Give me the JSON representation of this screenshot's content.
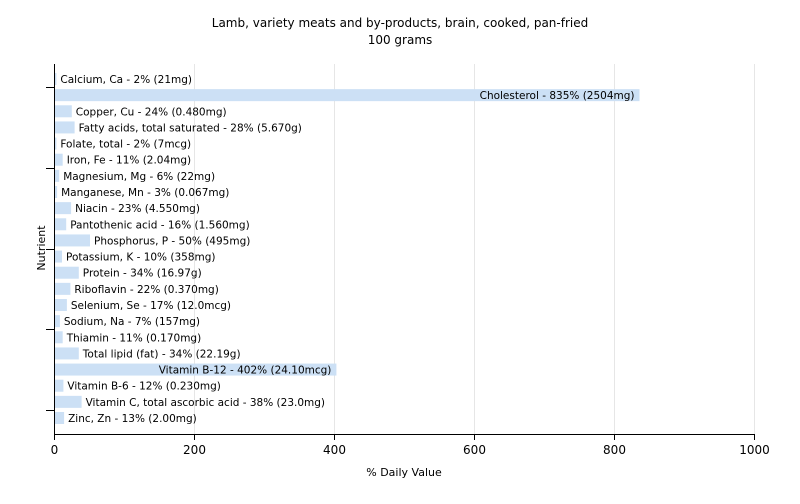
{
  "chart_data": {
    "type": "bar",
    "orientation": "horizontal",
    "title": "Lamb, variety meats and by-products, brain, cooked, pan-fried",
    "subtitle": "100 grams",
    "xlabel": "% Daily Value",
    "ylabel": "Nutrient",
    "xlim": [
      0,
      1000
    ],
    "xticks": [
      0,
      200,
      400,
      600,
      800,
      1000
    ],
    "grid": true,
    "bar_color": "#cce0f5",
    "categories": [
      "Calcium, Ca",
      "Cholesterol",
      "Copper, Cu",
      "Fatty acids, total saturated",
      "Folate, total",
      "Iron, Fe",
      "Magnesium, Mg",
      "Manganese, Mn",
      "Niacin",
      "Pantothenic acid",
      "Phosphorus, P",
      "Potassium, K",
      "Protein",
      "Riboflavin",
      "Selenium, Se",
      "Sodium, Na",
      "Thiamin",
      "Total lipid (fat)",
      "Vitamin B-12",
      "Vitamin B-6",
      "Vitamin C, total ascorbic acid",
      "Zinc, Zn"
    ],
    "values": [
      2,
      835,
      24,
      28,
      2,
      11,
      6,
      3,
      23,
      16,
      50,
      10,
      34,
      22,
      17,
      7,
      11,
      34,
      402,
      12,
      38,
      13
    ],
    "labels": [
      "Calcium, Ca - 2% (21mg)",
      "Cholesterol - 835% (2504mg)",
      "Copper, Cu - 24% (0.480mg)",
      "Fatty acids, total saturated - 28% (5.670g)",
      "Folate, total - 2% (7mcg)",
      "Iron, Fe - 11% (2.04mg)",
      "Magnesium, Mg - 6% (22mg)",
      "Manganese, Mn - 3% (0.067mg)",
      "Niacin - 23% (4.550mg)",
      "Pantothenic acid - 16% (1.560mg)",
      "Phosphorus, P - 50% (495mg)",
      "Potassium, K - 10% (358mg)",
      "Protein - 34% (16.97g)",
      "Riboflavin - 22% (0.370mg)",
      "Selenium, Se - 17% (12.0mcg)",
      "Sodium, Na - 7% (157mg)",
      "Thiamin - 11% (0.170mg)",
      "Total lipid (fat) - 34% (22.19g)",
      "Vitamin B-12 - 402% (24.10mcg)",
      "Vitamin B-6 - 12% (0.230mg)",
      "Vitamin C, total ascorbic acid - 38% (23.0mg)",
      "Zinc, Zn - 13% (2.00mg)"
    ]
  }
}
